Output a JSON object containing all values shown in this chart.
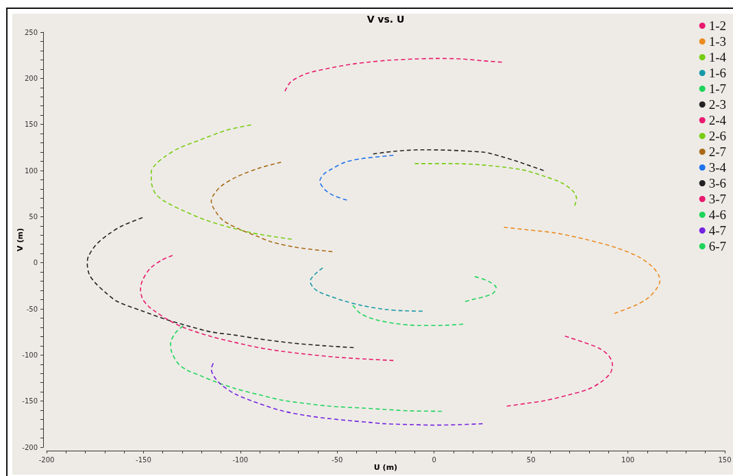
{
  "chart_data": {
    "type": "line",
    "title": "V vs. U",
    "xlabel": "U (m)",
    "ylabel": "V (m)",
    "line_style": "dashed",
    "legend": "top right",
    "xlim": [
      -200,
      150
    ],
    "xticks": [
      -200,
      {
        "value": -190,
        "label": null
      },
      {
        "value": -180,
        "label": null
      },
      {
        "value": -170,
        "label": null
      },
      {
        "value": -160,
        "label": null
      },
      -150,
      {
        "value": -140,
        "label": null
      },
      {
        "value": -130,
        "label": null
      },
      {
        "value": -120,
        "label": null
      },
      {
        "value": -110,
        "label": null
      },
      -100,
      {
        "value": -90,
        "label": null
      },
      {
        "value": -80,
        "label": null
      },
      {
        "value": -70,
        "label": null
      },
      {
        "value": -60,
        "label": null
      },
      -50,
      {
        "value": -40,
        "label": null
      },
      {
        "value": -30,
        "label": null
      },
      {
        "value": -20,
        "label": null
      },
      {
        "value": -10,
        "label": null
      },
      0,
      {
        "value": 10,
        "label": null
      },
      {
        "value": 20,
        "label": null
      },
      {
        "value": 30,
        "label": null
      },
      {
        "value": 40,
        "label": null
      },
      50,
      {
        "value": 60,
        "label": null
      },
      {
        "value": 70,
        "label": null
      },
      {
        "value": 80,
        "label": null
      },
      {
        "value": 90,
        "label": null
      },
      100,
      {
        "value": 110,
        "label": null
      },
      {
        "value": 120,
        "label": null
      },
      {
        "value": 130,
        "label": null
      },
      {
        "value": 140,
        "label": null
      },
      150
    ],
    "ylim": [
      -200,
      250
    ],
    "yticks": [
      -200,
      {
        "value": -190,
        "label": null
      },
      {
        "value": -180,
        "label": null
      },
      {
        "value": -170,
        "label": null
      },
      {
        "value": -160,
        "label": null
      },
      -150,
      {
        "value": -140,
        "label": null
      },
      {
        "value": -130,
        "label": null
      },
      {
        "value": -120,
        "label": null
      },
      {
        "value": -110,
        "label": null
      },
      -100,
      {
        "value": -90,
        "label": null
      },
      {
        "value": -80,
        "label": null
      },
      {
        "value": -70,
        "label": null
      },
      {
        "value": -60,
        "label": null
      },
      -50,
      {
        "value": -40,
        "label": null
      },
      {
        "value": -30,
        "label": null
      },
      {
        "value": -20,
        "label": null
      },
      {
        "value": -10,
        "label": null
      },
      0,
      {
        "value": 10,
        "label": null
      },
      {
        "value": 20,
        "label": null
      },
      {
        "value": 30,
        "label": null
      },
      {
        "value": 40,
        "label": null
      },
      50,
      {
        "value": 60,
        "label": null
      },
      {
        "value": 70,
        "label": null
      },
      {
        "value": 80,
        "label": null
      },
      {
        "value": 90,
        "label": null
      },
      100,
      {
        "value": 110,
        "label": null
      },
      {
        "value": 120,
        "label": null
      },
      {
        "value": 130,
        "label": null
      },
      {
        "value": 140,
        "label": null
      },
      150,
      {
        "value": 160,
        "label": null
      },
      {
        "value": 170,
        "label": null
      },
      {
        "value": 180,
        "label": null
      },
      {
        "value": 190,
        "label": null
      },
      200,
      {
        "value": 210,
        "label": null
      },
      {
        "value": 220,
        "label": null
      },
      {
        "value": 230,
        "label": null
      },
      {
        "value": 240,
        "label": null
      },
      250
    ],
    "series": [
      {
        "name": "1-2",
        "color": "#e8196e",
        "x": [
          -77,
          -74,
          -66,
          -54,
          -42,
          -34,
          -24,
          -9,
          1,
          14,
          25,
          35
        ],
        "values": [
          186,
          196,
          205,
          211,
          215.5,
          217.5,
          219.5,
          221,
          221.5,
          221,
          219,
          217.5
        ]
      },
      {
        "name": "1-3",
        "color": "#ec8b22",
        "x": [
          36,
          47,
          62,
          74,
          78,
          93,
          105.5,
          113,
          116,
          116.5,
          114.5,
          110.5,
          104.5,
          93
        ],
        "values": [
          38.5,
          36,
          32.5,
          27.5,
          25.5,
          17,
          6.5,
          -5,
          -14,
          -20,
          -29,
          -38,
          -45.5,
          -55
        ]
      },
      {
        "name": "1-4",
        "color": "#77cc11",
        "x": [
          -94.5,
          -107.5,
          -121,
          -132,
          -139,
          -144,
          -146,
          -146,
          -144,
          -139,
          -129.5,
          -117.5,
          -103,
          -90.5,
          -73.5
        ],
        "values": [
          149.5,
          143.5,
          133,
          124,
          115,
          106,
          98.5,
          89.5,
          75.5,
          66.5,
          56.5,
          46,
          37,
          31,
          25.5
        ]
      },
      {
        "name": "1-6",
        "color": "#1799a8",
        "x": [
          -57.5,
          -61.5,
          -64,
          -62.5,
          -59.5,
          -54,
          -47,
          -38,
          -25.5,
          -16,
          -6
        ],
        "values": [
          -5.5,
          -12.5,
          -20,
          -26.5,
          -31.5,
          -36,
          -41,
          -46,
          -50.5,
          -52,
          -52.5
        ]
      },
      {
        "name": "1-7",
        "color": "#1ed45a",
        "x": [
          -42,
          -38,
          -30.5,
          -19.5,
          -7.5,
          2.5,
          15
        ],
        "values": [
          -46,
          -55,
          -61.5,
          -66,
          -68,
          -68,
          -66.5
        ]
      },
      {
        "name": "2-3",
        "color": "#222222",
        "x": [
          -150.5,
          -161,
          -168,
          -174.5,
          -178.5,
          -179,
          -178,
          -175,
          -170,
          -163.5,
          -151,
          -139,
          -127,
          -115,
          -102.5,
          -90.5,
          -73.5,
          -56.5,
          -41.5
        ],
        "values": [
          49,
          40,
          31,
          19.5,
          6.5,
          -1,
          -12.5,
          -21.5,
          -31.5,
          -42,
          -52,
          -61,
          -68.5,
          -75,
          -78.5,
          -82.5,
          -87,
          -90,
          -92
        ]
      },
      {
        "name": "2-4",
        "color": "#e8196e",
        "x": [
          -135,
          -140.5,
          -146.5,
          -150.5,
          -151.5,
          -150.5,
          -147.5,
          -144.5,
          -138,
          -129.5,
          -115,
          -102.5,
          -90.5,
          -78.5,
          -66.5,
          -49.5,
          -34.5,
          -21
        ],
        "values": [
          8,
          3,
          -6,
          -19,
          -29,
          -39,
          -47,
          -52,
          -61,
          -70,
          -80,
          -86.5,
          -92,
          -96,
          -99,
          -102.5,
          -104.5,
          -106
        ]
      },
      {
        "name": "2-6",
        "color": "#77cc11",
        "x": [
          -10,
          9.5,
          25,
          45,
          56.5,
          66,
          72,
          73.5,
          72.5
        ],
        "values": [
          107.5,
          107.5,
          106,
          101,
          94,
          86.5,
          77,
          69.5,
          62
        ]
      },
      {
        "name": "2-7",
        "color": "#a86a17",
        "x": [
          -79,
          -90.5,
          -101.5,
          -110,
          -114,
          -115,
          -113.5,
          -109,
          -100,
          -91,
          -84.5,
          -72,
          -52.5
        ],
        "values": [
          109,
          102.5,
          93.5,
          83,
          73,
          66.5,
          58,
          46,
          36,
          28.5,
          23,
          17,
          12
        ]
      },
      {
        "name": "3-4",
        "color": "#1f72ee",
        "x": [
          -45,
          -52,
          -56.5,
          -59,
          -57,
          -53,
          -46,
          -37,
          -21
        ],
        "values": [
          68,
          73,
          79.5,
          88.5,
          96,
          101.5,
          109,
          113,
          116.5
        ]
      },
      {
        "name": "3-6",
        "color": "#222222",
        "x": [
          -31.5,
          -20,
          -6,
          8,
          25,
          30,
          42,
          56.5
        ],
        "values": [
          118,
          121,
          122.5,
          122,
          120,
          118,
          110.5,
          100
        ]
      },
      {
        "name": "3-7",
        "color": "#e8196e",
        "x": [
          67.5,
          77.5,
          85,
          90,
          92,
          91,
          86,
          79,
          69,
          57,
          47.5,
          37.5
        ],
        "values": [
          -79.5,
          -86.5,
          -92.5,
          -100.5,
          -110.5,
          -119.5,
          -129.5,
          -137.5,
          -143.5,
          -149.5,
          -152.5,
          -155.5
        ]
      },
      {
        "name": "4-6",
        "color": "#1ed45a",
        "x": [
          -129.5,
          -133.5,
          -136,
          -135.5,
          -132,
          -127,
          -121,
          -113.5,
          -102.5,
          -90.5,
          -78.5,
          -66.5,
          -54,
          -37,
          -25.5,
          -13.5,
          4
        ],
        "values": [
          -68.5,
          -76,
          -87.5,
          -96.5,
          -109.5,
          -117,
          -122,
          -128.5,
          -136.5,
          -143,
          -149,
          -152.5,
          -155.5,
          -157.5,
          -159,
          -160.5,
          -161
        ]
      },
      {
        "name": "4-7",
        "color": "#7423e0",
        "x": [
          -114,
          -115,
          -113.5,
          -110,
          -102.5,
          -90.5,
          -78.5,
          -66.5,
          -54,
          -42,
          -33.5,
          -25.5,
          -11,
          0,
          13.5,
          25
        ],
        "values": [
          -109,
          -115.5,
          -123.5,
          -132,
          -142.5,
          -152.5,
          -160.5,
          -165.5,
          -169,
          -171.5,
          -173,
          -174.5,
          -175.5,
          -176,
          -175.5,
          -174.5
        ]
      },
      {
        "name": "6-7",
        "color": "#1ed45a",
        "x": [
          21,
          28,
          32,
          30.5,
          25.5,
          20.5,
          16
        ],
        "values": [
          -15,
          -20,
          -27,
          -33,
          -37,
          -39.5,
          -42
        ]
      }
    ]
  }
}
